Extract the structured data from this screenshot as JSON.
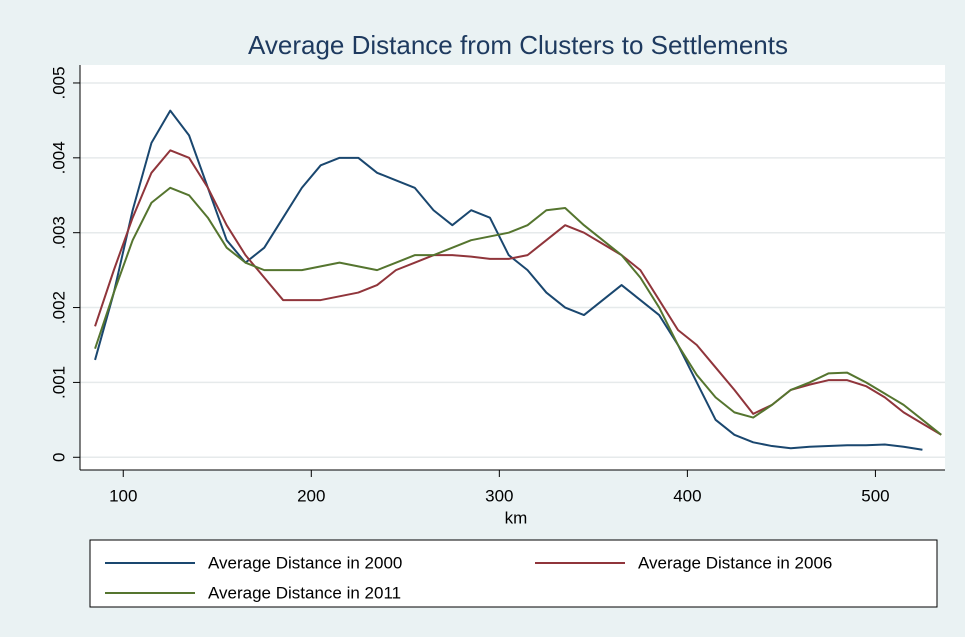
{
  "chart_data": {
    "type": "line",
    "title": "Average Distance from Clusters to Settlements",
    "xlabel": "km",
    "x": [
      85,
      95,
      105,
      115,
      125,
      135,
      145,
      155,
      165,
      175,
      185,
      195,
      205,
      215,
      225,
      235,
      245,
      255,
      265,
      275,
      285,
      295,
      305,
      315,
      325,
      335,
      345,
      355,
      365,
      375,
      385,
      395,
      405,
      415,
      425,
      435,
      445,
      455,
      465,
      475,
      485,
      495,
      505,
      515,
      525,
      535
    ],
    "series": [
      {
        "name": "Average Distance in 2000",
        "color": "#1a476f",
        "values": [
          0.0013,
          0.0022,
          0.0033,
          0.0042,
          0.00463,
          0.0043,
          0.0036,
          0.0029,
          0.0026,
          0.0028,
          0.0032,
          0.0036,
          0.0039,
          0.004,
          0.004,
          0.0038,
          0.0037,
          0.0036,
          0.0033,
          0.0031,
          0.0033,
          0.0032,
          0.0027,
          0.0025,
          0.0022,
          0.002,
          0.0019,
          0.0021,
          0.0023,
          0.0021,
          0.0019,
          0.0015,
          0.001,
          0.0005,
          0.0003,
          0.0002,
          0.00015,
          0.00012,
          0.00014,
          0.00015,
          0.00016,
          0.00016,
          0.00017,
          0.00014,
          0.0001,
          null
        ]
      },
      {
        "name": "Average Distance in 2006",
        "color": "#90353b",
        "values": [
          0.00175,
          0.0025,
          0.0032,
          0.0038,
          0.0041,
          0.004,
          0.0036,
          0.0031,
          0.0027,
          0.0024,
          0.0021,
          0.0021,
          0.0021,
          0.00215,
          0.0022,
          0.0023,
          0.0025,
          0.0026,
          0.0027,
          0.0027,
          0.00268,
          0.00265,
          0.00265,
          0.0027,
          0.0029,
          0.0031,
          0.003,
          0.00285,
          0.0027,
          0.0025,
          0.0021,
          0.0017,
          0.0015,
          0.0012,
          0.0009,
          0.00058,
          0.0007,
          0.0009,
          0.00097,
          0.00103,
          0.00103,
          0.00095,
          0.0008,
          0.0006,
          0.00045,
          0.0003
        ]
      },
      {
        "name": "Average Distance in 2011",
        "color": "#55752f",
        "values": [
          0.00145,
          0.0022,
          0.0029,
          0.0034,
          0.0036,
          0.0035,
          0.0032,
          0.0028,
          0.0026,
          0.0025,
          0.0025,
          0.0025,
          0.00255,
          0.0026,
          0.00255,
          0.0025,
          0.0026,
          0.0027,
          0.0027,
          0.0028,
          0.0029,
          0.00295,
          0.003,
          0.0031,
          0.0033,
          0.00333,
          0.0031,
          0.0029,
          0.0027,
          0.0024,
          0.002,
          0.0015,
          0.0011,
          0.0008,
          0.0006,
          0.00053,
          0.0007,
          0.0009,
          0.001,
          0.00112,
          0.00113,
          0.001,
          0.00085,
          0.0007,
          0.0005,
          0.0003
        ]
      }
    ],
    "xlim": [
      77,
      537
    ],
    "xticks": [
      100,
      200,
      300,
      400,
      500
    ],
    "ylim": [
      -0.00017,
      0.00524
    ],
    "yticks": [
      0,
      {
        "value": 0.001,
        "label": ".001"
      },
      {
        "value": 0.002,
        "label": ".002"
      },
      {
        "value": 0.003,
        "label": ".003"
      },
      {
        "value": 0.004,
        "label": ".004"
      },
      {
        "value": 0.005,
        "label": ".005"
      }
    ],
    "grid": true
  }
}
